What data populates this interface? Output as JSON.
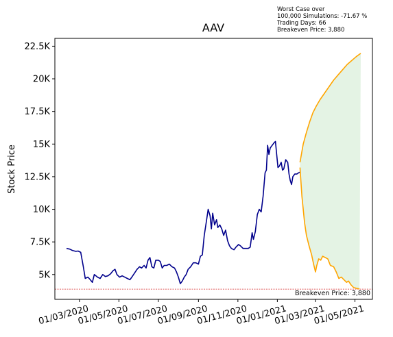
{
  "chart_data": {
    "type": "line",
    "title": "AAV",
    "xlabel": "",
    "ylabel": "Stock Price",
    "x_tick_labels": [
      "01/03/2020",
      "01/05/2020",
      "01/07/2020",
      "01/09/2020",
      "01/11/2020",
      "01/01/2021",
      "01/03/2021",
      "01/05/2021"
    ],
    "x_tick_dates": [
      "2020-03-01",
      "2020-05-01",
      "2020-07-01",
      "2020-09-01",
      "2020-11-01",
      "2021-01-01",
      "2021-03-01",
      "2021-05-01"
    ],
    "y_tick_labels": [
      "5K",
      "7.5K",
      "10K",
      "12.5K",
      "15K",
      "17.5K",
      "20K",
      "22.5K"
    ],
    "y_tick_values": [
      5000,
      7500,
      10000,
      12500,
      15000,
      17500,
      20000,
      22500
    ],
    "xlim": [
      "2020-01-23",
      "2021-05-28"
    ],
    "ylim": [
      3100,
      23100
    ],
    "grid": false,
    "legend": "none",
    "info_lines": [
      "Worst Case over",
      "100,000 Simulations: -71.67 %",
      "Trading Days: 66",
      "Breakeven Price: 3,880"
    ],
    "breakeven_label": "Breakeven Price: 3,880",
    "breakeven": 3880,
    "colors": {
      "history": "#00008b",
      "upper": "#ffa500",
      "lower": "#ffa500",
      "fill": "#2ca02c",
      "breakeven": "#d62728"
    },
    "series": [
      {
        "values": [
          [
            "2020-02-10",
            7000
          ],
          [
            "2020-02-15",
            6950
          ],
          [
            "2020-02-19",
            6850
          ],
          [
            "2020-02-24",
            6780
          ],
          [
            "2020-02-28",
            6800
          ],
          [
            "2020-03-03",
            6700
          ],
          [
            "2020-03-07",
            5600
          ],
          [
            "2020-03-10",
            4700
          ],
          [
            "2020-03-14",
            4800
          ],
          [
            "2020-03-17",
            4650
          ],
          [
            "2020-03-21",
            4400
          ],
          [
            "2020-03-24",
            5000
          ],
          [
            "2020-03-29",
            4800
          ],
          [
            "2020-04-02",
            4700
          ],
          [
            "2020-04-06",
            5000
          ],
          [
            "2020-04-10",
            4850
          ],
          [
            "2020-04-14",
            4900
          ],
          [
            "2020-04-18",
            5050
          ],
          [
            "2020-04-22",
            5300
          ],
          [
            "2020-04-25",
            5400
          ],
          [
            "2020-04-28",
            5000
          ],
          [
            "2020-05-02",
            4800
          ],
          [
            "2020-05-06",
            4900
          ],
          [
            "2020-05-10",
            4800
          ],
          [
            "2020-05-14",
            4700
          ],
          [
            "2020-05-18",
            4600
          ],
          [
            "2020-05-21",
            4800
          ],
          [
            "2020-05-25",
            5100
          ],
          [
            "2020-05-29",
            5400
          ],
          [
            "2020-06-02",
            5600
          ],
          [
            "2020-06-05",
            5500
          ],
          [
            "2020-06-09",
            5700
          ],
          [
            "2020-06-12",
            5500
          ],
          [
            "2020-06-15",
            6100
          ],
          [
            "2020-06-18",
            6300
          ],
          [
            "2020-06-21",
            5600
          ],
          [
            "2020-06-24",
            5500
          ],
          [
            "2020-06-27",
            6100
          ],
          [
            "2020-07-01",
            6100
          ],
          [
            "2020-07-04",
            6000
          ],
          [
            "2020-07-07",
            5500
          ],
          [
            "2020-07-10",
            5700
          ],
          [
            "2020-07-14",
            5700
          ],
          [
            "2020-07-18",
            5800
          ],
          [
            "2020-07-22",
            5600
          ],
          [
            "2020-07-26",
            5500
          ],
          [
            "2020-07-29",
            5200
          ],
          [
            "2020-08-01",
            4800
          ],
          [
            "2020-08-04",
            4300
          ],
          [
            "2020-08-07",
            4500
          ],
          [
            "2020-08-10",
            4800
          ],
          [
            "2020-08-13",
            5000
          ],
          [
            "2020-08-16",
            5400
          ],
          [
            "2020-08-20",
            5600
          ],
          [
            "2020-08-24",
            5900
          ],
          [
            "2020-08-28",
            5900
          ],
          [
            "2020-09-01",
            5800
          ],
          [
            "2020-09-04",
            6400
          ],
          [
            "2020-09-07",
            6500
          ],
          [
            "2020-09-10",
            8000
          ],
          [
            "2020-09-13",
            9000
          ],
          [
            "2020-09-16",
            10000
          ],
          [
            "2020-09-19",
            9500
          ],
          [
            "2020-09-21",
            8500
          ],
          [
            "2020-09-23",
            9700
          ],
          [
            "2020-09-26",
            8800
          ],
          [
            "2020-09-29",
            9200
          ],
          [
            "2020-10-01",
            8600
          ],
          [
            "2020-10-04",
            8800
          ],
          [
            "2020-10-07",
            8500
          ],
          [
            "2020-10-10",
            8000
          ],
          [
            "2020-10-13",
            8400
          ],
          [
            "2020-10-16",
            7600
          ],
          [
            "2020-10-19",
            7200
          ],
          [
            "2020-10-22",
            7000
          ],
          [
            "2020-10-26",
            6900
          ],
          [
            "2020-10-29",
            7100
          ],
          [
            "2020-11-02",
            7300
          ],
          [
            "2020-11-05",
            7200
          ],
          [
            "2020-11-09",
            7000
          ],
          [
            "2020-11-13",
            7000
          ],
          [
            "2020-11-17",
            7000
          ],
          [
            "2020-11-20",
            7100
          ],
          [
            "2020-11-23",
            8200
          ],
          [
            "2020-11-25",
            7700
          ],
          [
            "2020-11-28",
            8300
          ],
          [
            "2020-12-01",
            9600
          ],
          [
            "2020-12-04",
            10000
          ],
          [
            "2020-12-07",
            9800
          ],
          [
            "2020-12-10",
            11000
          ],
          [
            "2020-12-13",
            12800
          ],
          [
            "2020-12-15",
            13000
          ],
          [
            "2020-12-17",
            14900
          ],
          [
            "2020-12-19",
            14200
          ],
          [
            "2020-12-21",
            14700
          ],
          [
            "2020-12-24",
            14900
          ],
          [
            "2020-12-27",
            15100
          ],
          [
            "2020-12-29",
            15200
          ],
          [
            "2020-12-31",
            14200
          ],
          [
            "2021-01-02",
            13200
          ],
          [
            "2021-01-04",
            13300
          ],
          [
            "2021-01-07",
            13600
          ],
          [
            "2021-01-09",
            13000
          ],
          [
            "2021-01-11",
            13100
          ],
          [
            "2021-01-14",
            13800
          ],
          [
            "2021-01-17",
            13600
          ],
          [
            "2021-01-19",
            12700
          ],
          [
            "2021-01-21",
            12200
          ],
          [
            "2021-01-23",
            11900
          ],
          [
            "2021-01-25",
            12500
          ],
          [
            "2021-01-28",
            12700
          ],
          [
            "2021-01-31",
            12700
          ],
          [
            "2021-02-03",
            12800
          ],
          [
            "2021-02-05",
            12850
          ]
        ]
      },
      {
        "values": [
          [
            "2021-02-05",
            13600
          ],
          [
            "2021-02-10",
            15000
          ],
          [
            "2021-02-15",
            15900
          ],
          [
            "2021-02-20",
            16700
          ],
          [
            "2021-02-25",
            17400
          ],
          [
            "2021-03-02",
            17900
          ],
          [
            "2021-03-08",
            18400
          ],
          [
            "2021-03-15",
            18900
          ],
          [
            "2021-03-22",
            19400
          ],
          [
            "2021-03-29",
            19900
          ],
          [
            "2021-04-05",
            20300
          ],
          [
            "2021-04-12",
            20700
          ],
          [
            "2021-04-19",
            21100
          ],
          [
            "2021-04-26",
            21400
          ],
          [
            "2021-05-03",
            21700
          ],
          [
            "2021-05-10",
            21950
          ]
        ]
      },
      {
        "values": [
          [
            "2021-02-05",
            13200
          ],
          [
            "2021-02-08",
            11000
          ],
          [
            "2021-02-12",
            9000
          ],
          [
            "2021-02-15",
            8000
          ],
          [
            "2021-02-19",
            7200
          ],
          [
            "2021-02-23",
            6500
          ],
          [
            "2021-02-26",
            5800
          ],
          [
            "2021-03-01",
            5200
          ],
          [
            "2021-03-03",
            5700
          ],
          [
            "2021-03-06",
            6200
          ],
          [
            "2021-03-09",
            6100
          ],
          [
            "2021-03-12",
            6400
          ],
          [
            "2021-03-16",
            6300
          ],
          [
            "2021-03-20",
            6200
          ],
          [
            "2021-03-24",
            5700
          ],
          [
            "2021-03-29",
            5600
          ],
          [
            "2021-04-02",
            5200
          ],
          [
            "2021-04-06",
            4700
          ],
          [
            "2021-04-10",
            4800
          ],
          [
            "2021-04-14",
            4600
          ],
          [
            "2021-04-18",
            4400
          ],
          [
            "2021-04-21",
            4500
          ],
          [
            "2021-04-25",
            4200
          ],
          [
            "2021-04-29",
            4000
          ],
          [
            "2021-05-03",
            3950
          ],
          [
            "2021-05-08",
            3900
          ]
        ]
      }
    ]
  }
}
